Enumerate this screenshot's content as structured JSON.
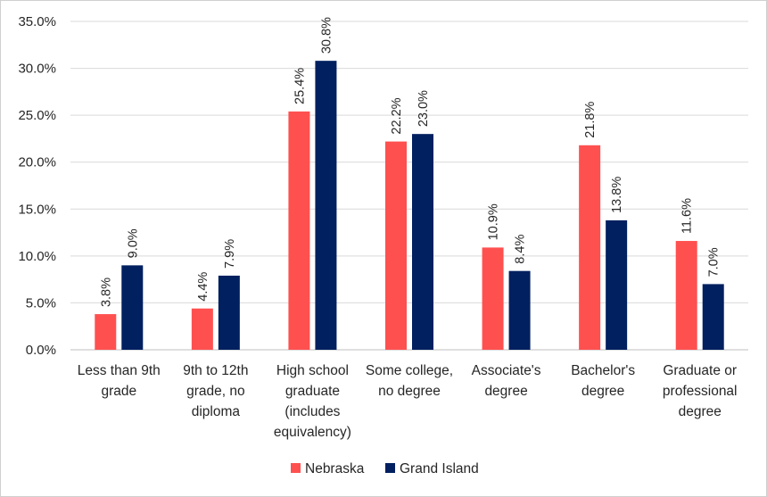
{
  "chart_data": {
    "type": "bar",
    "title": "",
    "xlabel": "",
    "ylabel": "",
    "ylim": [
      0,
      35
    ],
    "yticks": [
      0,
      5,
      10,
      15,
      20,
      25,
      30,
      35
    ],
    "ytick_labels": [
      "0.0%",
      "5.0%",
      "10.0%",
      "15.0%",
      "20.0%",
      "25.0%",
      "30.0%",
      "35.0%"
    ],
    "grid": true,
    "legend_position": "bottom-center",
    "categories": [
      [
        "Less than 9th",
        "grade"
      ],
      [
        "9th to 12th",
        "grade, no",
        "diploma"
      ],
      [
        "High school",
        "graduate",
        "(includes",
        "equivalency)"
      ],
      [
        "Some college,",
        "no degree"
      ],
      [
        "Associate's",
        "degree"
      ],
      [
        "Bachelor's",
        "degree"
      ],
      [
        "Graduate or",
        "professional",
        "degree"
      ]
    ],
    "series": [
      {
        "name": "Nebraska",
        "color": "#FF5050",
        "values": [
          3.8,
          4.4,
          25.4,
          22.2,
          10.9,
          21.8,
          11.6
        ],
        "labels": [
          "3.8%",
          "4.4%",
          "25.4%",
          "22.2%",
          "10.9%",
          "21.8%",
          "11.6%"
        ]
      },
      {
        "name": "Grand Island",
        "color": "#002060",
        "values": [
          9.0,
          7.9,
          30.8,
          23.0,
          8.4,
          13.8,
          7.0
        ],
        "labels": [
          "9.0%",
          "7.9%",
          "30.8%",
          "23.0%",
          "8.4%",
          "13.8%",
          "7.0%"
        ]
      }
    ]
  },
  "colors": {
    "gridline": "#d9d9d9",
    "axis_line": "#bfbfbf",
    "text": "#262626"
  }
}
